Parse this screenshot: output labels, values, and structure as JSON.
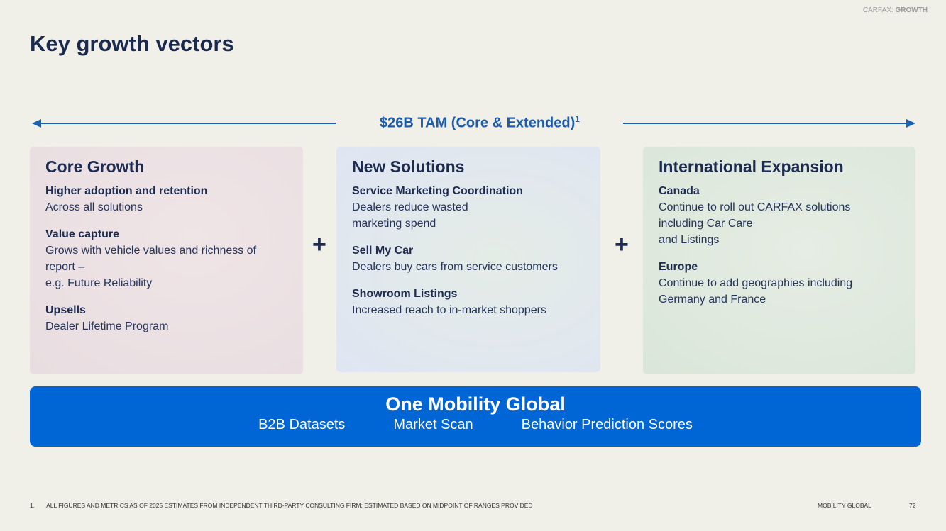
{
  "header": {
    "brand": "CARFAX:",
    "section": "GROWTH",
    "title": "Key growth vectors"
  },
  "tam": {
    "text": "$26B TAM (Core & Extended)",
    "footnote_mark": "1"
  },
  "separator": "+",
  "columns": [
    {
      "title": "Core Growth",
      "items": [
        {
          "heading": "Higher adoption and retention",
          "lines": [
            "Across all solutions"
          ]
        },
        {
          "heading": "Value capture",
          "lines": [
            "Grows with vehicle values and richness of",
            "report –",
            "e.g. Future Reliability"
          ]
        },
        {
          "heading": "Upsells",
          "lines": [
            "Dealer Lifetime Program"
          ]
        }
      ]
    },
    {
      "title": "New Solutions",
      "items": [
        {
          "heading": "Service Marketing Coordination",
          "lines": [
            "Dealers reduce wasted",
            "marketing spend"
          ]
        },
        {
          "heading": "Sell My Car",
          "lines": [
            "Dealers buy cars from service customers"
          ]
        },
        {
          "heading": "Showroom Listings",
          "lines": [
            "Increased reach to in-market shoppers"
          ]
        }
      ]
    },
    {
      "title": "International Expansion",
      "items": [
        {
          "heading": "Canada",
          "lines": [
            "Continue to roll out CARFAX solutions",
            "including Car Care",
            "and Listings"
          ]
        },
        {
          "heading": "Europe",
          "lines": [
            "Continue to add geographies including",
            "Germany and France"
          ]
        }
      ]
    }
  ],
  "banner": {
    "title": "One Mobility Global",
    "items": [
      "B2B Datasets",
      "Market Scan",
      "Behavior Prediction Scores"
    ]
  },
  "footer": {
    "note_number": "1.",
    "note": "ALL FIGURES AND METRICS AS OF 2025 ESTIMATES FROM INDEPENDENT THIRD-PARTY CONSULTING FIRM; ESTIMATED BASED ON MIDPOINT OF RANGES PROVIDED",
    "label": "MOBILITY GLOBAL",
    "page": "72"
  }
}
